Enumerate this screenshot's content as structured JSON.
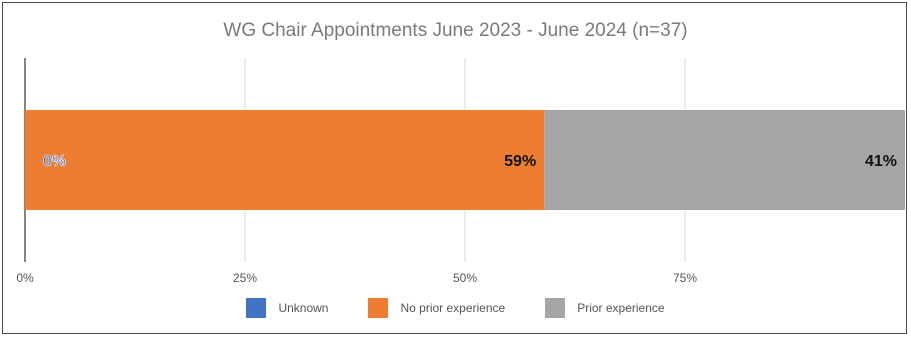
{
  "chart_data": {
    "type": "bar",
    "orientation": "horizontal",
    "stacked": true,
    "title": "WG Chair Appointments June 2023 - June 2024 (n=37)",
    "xlim": [
      0,
      100
    ],
    "ticks": [
      "0%",
      "25%",
      "50%",
      "75%"
    ],
    "tick_values": [
      0,
      25,
      50,
      75
    ],
    "grid": true,
    "legend_position": "bottom",
    "series": [
      {
        "name": "Unknown",
        "value": 0,
        "label": "0%",
        "color": "#4472c4"
      },
      {
        "name": "No prior experience",
        "value": 59,
        "label": "59%",
        "color": "#ed7d31"
      },
      {
        "name": "Prior experience",
        "value": 41,
        "label": "41%",
        "color": "#a5a5a5"
      }
    ]
  }
}
